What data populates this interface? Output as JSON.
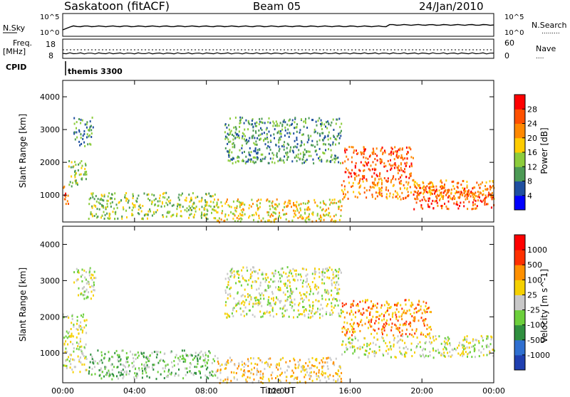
{
  "header": {
    "title": "Saskatoon (fitACF)",
    "beam": "Beam 05",
    "date": "24/Jan/2010"
  },
  "strip_labels": {
    "nsky": "N.Sky",
    "nsearch": "N.Search",
    "nsearch_dots": ".........",
    "freq_line1": "Freq.",
    "freq_line2": "[MHz]",
    "nave": "Nave",
    "nave_dots": "....",
    "cpid": "CPID",
    "cpid_value": "themis 3300",
    "nsky_ticks": [
      "10^5",
      "10^0"
    ],
    "nsearch_ticks": [
      "10^5",
      "10^0"
    ],
    "freq_ticks": [
      "18",
      "8"
    ],
    "nave_ticks": [
      "60",
      "0"
    ]
  },
  "colors": {
    "power_scale": [
      "#0000ff",
      "#1f4fa0",
      "#4c9a55",
      "#8ccc3c",
      "#ffcc00",
      "#ff8800",
      "#ff5000",
      "#ff0000"
    ],
    "velocity_scale": [
      "#1f3fb0",
      "#2f6fd0",
      "#2f8f3f",
      "#6ccf3c",
      "#c8c8c8",
      "#f5d000",
      "#ff9000",
      "#ff3000",
      "#ff0000"
    ],
    "ground_scatter": "#c0c0c0"
  },
  "chart_data": [
    {
      "type": "heatmap",
      "panel": "power",
      "ylabel": "Slant Range [km]",
      "ylim": [
        180,
        4500
      ],
      "yticks": [
        "1000",
        "2000",
        "3000",
        "4000"
      ],
      "xticks": [
        "00:00",
        "04:00",
        "08:00",
        "12:00",
        "16:00",
        "20:00",
        "00:00"
      ],
      "colorbar_label": "Power [dB]",
      "colorbar_ticks": [
        "28",
        "24",
        "20",
        "16",
        "12",
        "8",
        "4"
      ],
      "regions": [
        {
          "t0": 0.0,
          "t1": 0.3,
          "r0": 600,
          "r1": 1300,
          "level": 6
        },
        {
          "t0": 0.3,
          "t1": 1.3,
          "r0": 1300,
          "r1": 2100,
          "level": 3
        },
        {
          "t0": 0.6,
          "t1": 1.8,
          "r0": 2500,
          "r1": 3400,
          "level": 2
        },
        {
          "t0": 1.4,
          "t1": 8.5,
          "r0": 300,
          "r1": 1100,
          "level": 3
        },
        {
          "t0": 8.5,
          "t1": 15.5,
          "r0": 200,
          "r1": 900,
          "level": 4
        },
        {
          "t0": 9.0,
          "t1": 15.5,
          "r0": 2000,
          "r1": 3400,
          "level": 2
        },
        {
          "t0": 15.5,
          "t1": 19.5,
          "r0": 1500,
          "r1": 2500,
          "level": 6
        },
        {
          "t0": 15.5,
          "t1": 24.0,
          "r0": 900,
          "r1": 1500,
          "level": 5
        },
        {
          "t0": 19.5,
          "t1": 24.0,
          "r0": 600,
          "r1": 1300,
          "level": 6
        }
      ]
    },
    {
      "type": "heatmap",
      "panel": "velocity",
      "ylabel": "Slant Range [km]",
      "ylim": [
        180,
        4500
      ],
      "yticks": [
        "1000",
        "2000",
        "3000",
        "4000"
      ],
      "xticks": [
        "00:00",
        "04:00",
        "08:00",
        "12:00",
        "16:00",
        "20:00",
        "00:00"
      ],
      "xlabel": "Time UT",
      "colorbar_label": "Velocity [m s^-1]",
      "colorbar_ticks": [
        "1000",
        "500",
        "100",
        "25",
        "-25",
        "-100",
        "-500",
        "-1000"
      ],
      "regions": [
        {
          "t0": 0.0,
          "t1": 1.3,
          "r0": 500,
          "r1": 2100,
          "level": 4
        },
        {
          "t0": 0.6,
          "t1": 1.8,
          "r0": 2500,
          "r1": 3400,
          "level": 4
        },
        {
          "t0": 1.4,
          "t1": 8.5,
          "r0": 300,
          "r1": 1100,
          "level": 3
        },
        {
          "t0": 8.5,
          "t1": 15.5,
          "r0": 200,
          "r1": 900,
          "level": 5
        },
        {
          "t0": 9.0,
          "t1": 15.5,
          "r0": 2000,
          "r1": 3400,
          "level": 4
        },
        {
          "t0": 15.5,
          "t1": 20.5,
          "r0": 1500,
          "r1": 2500,
          "level": 6
        },
        {
          "t0": 15.5,
          "t1": 24.0,
          "r0": 900,
          "r1": 1500,
          "level": 4
        }
      ]
    }
  ]
}
